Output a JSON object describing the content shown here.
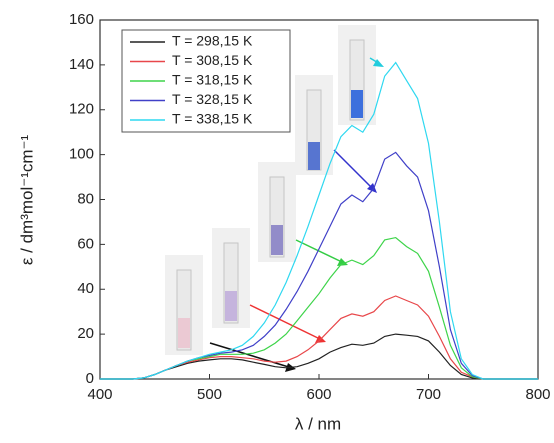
{
  "chart_data": {
    "type": "line",
    "x_label": "λ / nm",
    "y_label": "ε / dm³mol⁻¹cm⁻¹",
    "x": [
      400,
      410,
      420,
      430,
      440,
      450,
      460,
      470,
      480,
      490,
      500,
      510,
      520,
      530,
      540,
      550,
      560,
      570,
      580,
      590,
      600,
      610,
      620,
      630,
      640,
      650,
      660,
      670,
      680,
      690,
      700,
      710,
      720,
      730,
      740,
      750,
      760,
      770,
      780,
      790,
      800
    ],
    "series": [
      {
        "name": "T = 298,15 K",
        "color": "#222222",
        "values": [
          0,
          0,
          0,
          0,
          0.5,
          2,
          4,
          5.5,
          7,
          8,
          8.5,
          9,
          9,
          8.5,
          7.5,
          6.5,
          5.5,
          5,
          5.5,
          7,
          9,
          12,
          14,
          15.5,
          15,
          16,
          19,
          20,
          19.5,
          19,
          17,
          12,
          6,
          2,
          0.5,
          0,
          0,
          0,
          0,
          0,
          0
        ]
      },
      {
        "name": "T = 308,15 K",
        "color": "#e8474a",
        "values": [
          0,
          0,
          0,
          0,
          0.5,
          2,
          4,
          6,
          7.5,
          8.5,
          9.5,
          10,
          10,
          9.5,
          9,
          8,
          7.5,
          8,
          10,
          13,
          17,
          22,
          27,
          29,
          28,
          30,
          35,
          37,
          35,
          33,
          28,
          19,
          9,
          3,
          1,
          0,
          0,
          0,
          0,
          0,
          0
        ]
      },
      {
        "name": "T = 318,15 K",
        "color": "#3ed44a",
        "values": [
          0,
          0,
          0,
          0,
          0.5,
          2,
          4,
          6,
          8,
          9,
          10,
          11,
          11,
          11,
          11.5,
          13,
          16,
          20,
          26,
          32,
          38,
          45,
          51,
          53,
          51,
          55,
          62,
          63,
          59,
          56,
          48,
          32,
          15,
          5,
          1,
          0,
          0,
          0,
          0,
          0,
          0
        ]
      },
      {
        "name": "T = 328,15 K",
        "color": "#4040c8",
        "values": [
          0,
          0,
          0,
          0,
          0.5,
          2,
          4,
          6,
          8,
          9.5,
          10.5,
          11.5,
          12,
          13,
          15,
          19,
          24,
          31,
          39,
          48,
          58,
          68,
          78,
          82,
          79,
          85,
          98,
          101,
          95,
          90,
          75,
          50,
          22,
          7,
          1.5,
          0,
          0,
          0,
          0,
          0,
          0
        ]
      },
      {
        "name": "T = 338,15 K",
        "color": "#2fd8f0",
        "values": [
          0,
          0,
          0,
          0,
          0.5,
          2,
          4,
          6,
          8,
          9.5,
          11,
          12,
          13,
          15,
          19,
          25,
          33,
          43,
          55,
          68,
          82,
          96,
          108,
          113,
          110,
          118,
          135,
          141,
          133,
          125,
          105,
          70,
          30,
          9,
          2,
          0,
          0,
          0,
          0,
          0,
          0
        ]
      }
    ],
    "xlim": [
      400,
      800
    ],
    "xticks": [
      400,
      500,
      600,
      700,
      800
    ],
    "ylim": [
      0,
      160
    ],
    "yticks": [
      0,
      20,
      40,
      60,
      80,
      100,
      120,
      140,
      160
    ]
  }
}
